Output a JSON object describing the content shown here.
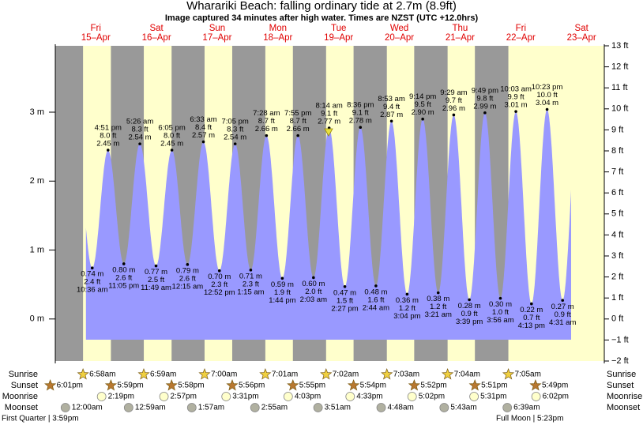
{
  "title": "Wharariki Beach: falling  ordinary tide at 2.7m (8.9ft)",
  "subtitle": "Image captured 34 minutes after high water. Times are NZST (UTC +12.0hrs)",
  "chart_data": {
    "type": "tide",
    "xlim": [
      -4,
      213
    ],
    "xticks": [
      {
        "value": 12,
        "label": "15–Apr"
      },
      {
        "value": 36,
        "label": "16–Apr"
      },
      {
        "value": 60,
        "label": "17–Apr"
      },
      {
        "value": 84,
        "label": "18–Apr"
      },
      {
        "value": 108,
        "label": "19–Apr"
      },
      {
        "value": 132,
        "label": "20–Apr"
      },
      {
        "value": 156,
        "label": "21–Apr"
      },
      {
        "value": 180,
        "label": "22–Apr"
      },
      {
        "value": 204,
        "label": "23–Apr"
      }
    ],
    "day_names": [
      "Fri",
      "Sat",
      "Sun",
      "Mon",
      "Tue",
      "Wed",
      "Thu",
      "Fri",
      "Sat"
    ],
    "ylim": [
      -0.6096,
      3.9624
    ],
    "yticks": [
      {
        "value": 0,
        "label": "0 m"
      },
      {
        "value": 1,
        "label": "1 m"
      },
      {
        "value": 2,
        "label": "2 m"
      },
      {
        "value": 3,
        "label": "3 m"
      }
    ],
    "y2lim": [
      -2,
      13
    ],
    "y2ticks": [
      {
        "value": -2,
        "label": "−2 ft"
      },
      {
        "value": -1,
        "label": "−1 ft"
      },
      {
        "value": 0,
        "label": "0 ft"
      },
      {
        "value": 1,
        "label": "1 ft"
      },
      {
        "value": 2,
        "label": "2 ft"
      },
      {
        "value": 3,
        "label": "3 ft"
      },
      {
        "value": 4,
        "label": "4 ft"
      },
      {
        "value": 5,
        "label": "5 ft"
      },
      {
        "value": 6,
        "label": "6 ft"
      },
      {
        "value": 7,
        "label": "7 ft"
      },
      {
        "value": 8,
        "label": "8 ft"
      },
      {
        "value": 9,
        "label": "9 ft"
      },
      {
        "value": 10,
        "label": "10 ft"
      },
      {
        "value": 11,
        "label": "11 ft"
      },
      {
        "value": 12,
        "label": "12 ft"
      },
      {
        "value": 13,
        "label": "13 ft"
      }
    ],
    "color": "#9999ff",
    "times": [
      "10:36 am",
      "4:51 pm",
      "11:05 pm",
      "5:26 am",
      "11:49 am",
      "6:05 pm",
      "12:15 am",
      "6:33 am",
      "12:52 pm",
      "7:05 pm",
      "1:15 am",
      "7:28 am",
      "1:44 pm",
      "7:55 pm",
      "2:03 am",
      "8:14 am",
      "2:27 pm",
      "8:36 pm",
      "2:44 am",
      "8:53 am",
      "3:04 pm",
      "9:14 pm",
      "3:21 am",
      "9:29 am",
      "3:39 pm",
      "9:49 pm",
      "3:56 am",
      "10:03 am",
      "4:13 pm",
      "10:23 pm",
      "4:31 am"
    ],
    "values": [
      0.74,
      2.45,
      0.8,
      2.54,
      0.77,
      2.45,
      0.79,
      2.57,
      0.7,
      2.54,
      0.71,
      2.66,
      0.59,
      2.66,
      0.6,
      2.77,
      0.47,
      2.78,
      0.48,
      2.87,
      0.36,
      2.9,
      0.38,
      2.96,
      0.28,
      2.99,
      0.3,
      3.01,
      0.22,
      3.04,
      0.27
    ],
    "value_labels": [
      "0.74 m",
      "2.45 m",
      "0.80 m",
      "2.54 m",
      "0.77 m",
      "2.45 m",
      "0.79 m",
      "2.57 m",
      "0.70 m",
      "2.54 m",
      "0.71 m",
      "2.66 m",
      "0.59 m",
      "2.66 m",
      "0.60 m",
      "2.77 m",
      "0.47 m",
      "2.78 m",
      "0.48 m",
      "2.87 m",
      "0.36 m",
      "2.90 m",
      "0.38 m",
      "2.96 m",
      "0.28 m",
      "2.99 m",
      "0.30 m",
      "3.01 m",
      "0.22 m",
      "3.04 m",
      "0.27 m"
    ],
    "ft_labels": [
      "2.4 ft",
      "8.0 ft",
      "2.6 ft",
      "8.3 ft",
      "2.5 ft",
      "8.0 ft",
      "2.6 ft",
      "8.4 ft",
      "2.3 ft",
      "8.3 ft",
      "2.3 ft",
      "8.7 ft",
      "1.9 ft",
      "8.7 ft",
      "2.0 ft",
      "9.1 ft",
      "1.5 ft",
      "9.1 ft",
      "1.6 ft",
      "9.4 ft",
      "1.2 ft",
      "9.5 ft",
      "1.2 ft",
      "9.7 ft",
      "0.9 ft",
      "9.8 ft",
      "1.0 ft",
      "9.9 ft",
      "0.7 ft",
      "10.0 ft",
      "0.9 ft"
    ]
  },
  "almanac": {
    "labels": [
      "Sunrise",
      "Sunset",
      "Moonrise",
      "Moonset"
    ],
    "sunrise": [
      "6:58am",
      "6:59am",
      "7:00am",
      "7:01am",
      "7:02am",
      "7:03am",
      "7:04am",
      "7:05am"
    ],
    "sunset": [
      "6:01pm",
      "5:59pm",
      "5:58pm",
      "5:56pm",
      "5:55pm",
      "5:54pm",
      "5:52pm",
      "5:51pm",
      "5:49pm"
    ],
    "moonrise": [
      "2:19pm",
      "2:57pm",
      "3:31pm",
      "4:03pm",
      "4:33pm",
      "5:02pm",
      "5:31pm",
      "6:02pm"
    ],
    "moonset": [
      "12:00am",
      "12:59am",
      "1:57am",
      "2:55am",
      "3:51am",
      "4:48am",
      "5:43am",
      "6:39am"
    ]
  },
  "moon_phases": [
    "First Quarter | 3:59pm",
    "Full Moon | 5:23pm"
  ]
}
